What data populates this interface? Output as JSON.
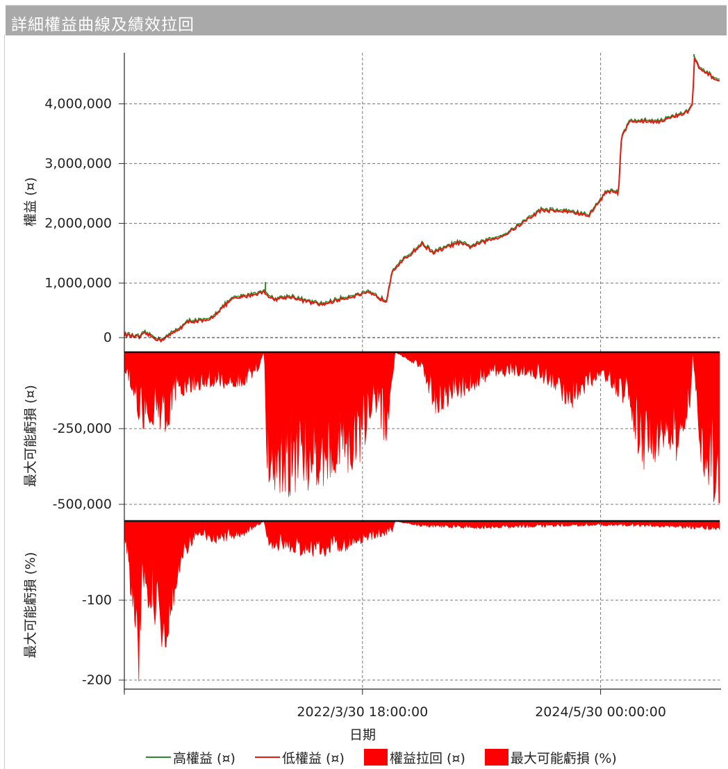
{
  "window": {
    "title": "詳細權益曲線及績效拉回"
  },
  "colors": {
    "high": "#2a8a2a",
    "low": "#e8170f",
    "fill": "#ff0000",
    "grid": "#777777"
  },
  "chart_data": {
    "type": "line",
    "xlabel": "日期",
    "x_ticks": [
      "2022/3/30 18:00:00",
      "2024/5/30 00:00:00"
    ],
    "series": [
      {
        "name": "高權益 (¤)",
        "type": "line"
      },
      {
        "name": "低權益 (¤)",
        "type": "line"
      },
      {
        "name": "權益拉回 (¤)",
        "type": "area"
      },
      {
        "name": "最大可能虧損 (%)",
        "type": "area"
      }
    ],
    "panels": [
      {
        "ylabel": "權益 (¤)",
        "yticks": [
          "4,000,000",
          "3,000,000",
          "2,000,000",
          "1,000,000",
          "0"
        ],
        "ylim": [
          -200000,
          4900000
        ],
        "equity_points": [
          [
            0.0,
            50000
          ],
          [
            0.025,
            0
          ],
          [
            0.035,
            70000
          ],
          [
            0.06,
            -50000
          ],
          [
            0.075,
            30000
          ],
          [
            0.11,
            280000
          ],
          [
            0.14,
            280000
          ],
          [
            0.18,
            650000
          ],
          [
            0.235,
            780000
          ],
          [
            0.25,
            650000
          ],
          [
            0.28,
            700000
          ],
          [
            0.3,
            630000
          ],
          [
            0.33,
            560000
          ],
          [
            0.38,
            700000
          ],
          [
            0.41,
            760000
          ],
          [
            0.44,
            620000
          ],
          [
            0.45,
            1150000
          ],
          [
            0.5,
            1600000
          ],
          [
            0.52,
            1450000
          ],
          [
            0.56,
            1620000
          ],
          [
            0.58,
            1550000
          ],
          [
            0.64,
            1760000
          ],
          [
            0.7,
            2180000
          ],
          [
            0.75,
            2150000
          ],
          [
            0.78,
            2080000
          ],
          [
            0.81,
            2500000
          ],
          [
            0.83,
            2480000
          ],
          [
            0.835,
            3450000
          ],
          [
            0.85,
            3700000
          ],
          [
            0.9,
            3700000
          ],
          [
            0.945,
            3850000
          ],
          [
            0.955,
            4000000
          ],
          [
            0.957,
            4800000
          ],
          [
            0.965,
            4600000
          ],
          [
            1.0,
            4380000
          ]
        ],
        "spikes": [
          [
            0.237,
            950000
          ],
          [
            0.957,
            4850000
          ]
        ]
      },
      {
        "ylabel": "最大可能虧損 (¤)",
        "yticks": [
          "-250,000",
          "-500,000"
        ],
        "ylim": [
          -560000,
          0
        ],
        "envelope": [
          [
            0.0,
            60000
          ],
          [
            0.02,
            170000
          ],
          [
            0.025,
            280000
          ],
          [
            0.04,
            230000
          ],
          [
            0.07,
            280000
          ],
          [
            0.09,
            150000
          ],
          [
            0.14,
            120000
          ],
          [
            0.2,
            120000
          ],
          [
            0.225,
            60000
          ],
          [
            0.235,
            0
          ],
          [
            0.24,
            450000
          ],
          [
            0.27,
            480000
          ],
          [
            0.3,
            470000
          ],
          [
            0.35,
            440000
          ],
          [
            0.4,
            360000
          ],
          [
            0.42,
            180000
          ],
          [
            0.44,
            330000
          ],
          [
            0.455,
            0
          ],
          [
            0.5,
            60000
          ],
          [
            0.52,
            210000
          ],
          [
            0.57,
            150000
          ],
          [
            0.62,
            80000
          ],
          [
            0.68,
            80000
          ],
          [
            0.72,
            120000
          ],
          [
            0.75,
            200000
          ],
          [
            0.8,
            80000
          ],
          [
            0.85,
            200000
          ],
          [
            0.87,
            420000
          ],
          [
            0.9,
            350000
          ],
          [
            0.93,
            380000
          ],
          [
            0.95,
            200000
          ],
          [
            0.955,
            0
          ],
          [
            0.97,
            420000
          ],
          [
            1.0,
            530000
          ]
        ]
      },
      {
        "ylabel": "最大可能虧損 (%)",
        "yticks": [
          "-100",
          "-200"
        ],
        "ylim": [
          -215,
          5
        ],
        "envelope": [
          [
            0.0,
            20
          ],
          [
            0.018,
            150
          ],
          [
            0.025,
            210
          ],
          [
            0.03,
            90
          ],
          [
            0.045,
            120
          ],
          [
            0.07,
            175
          ],
          [
            0.09,
            70
          ],
          [
            0.12,
            20
          ],
          [
            0.15,
            30
          ],
          [
            0.2,
            20
          ],
          [
            0.235,
            0
          ],
          [
            0.24,
            35
          ],
          [
            0.3,
            45
          ],
          [
            0.35,
            45
          ],
          [
            0.4,
            30
          ],
          [
            0.45,
            15
          ],
          [
            0.455,
            0
          ],
          [
            0.5,
            8
          ],
          [
            0.6,
            10
          ],
          [
            0.7,
            8
          ],
          [
            0.8,
            6
          ],
          [
            0.9,
            8
          ],
          [
            1.0,
            12
          ]
        ]
      }
    ]
  },
  "legend": [
    {
      "label": "高權益 (¤)",
      "kind": "line",
      "color": "#2a8a2a"
    },
    {
      "label": "低權益 (¤)",
      "kind": "line",
      "color": "#e8170f"
    },
    {
      "label": "權益拉回 (¤)",
      "kind": "box",
      "color": "#ff0000"
    },
    {
      "label": "最大可能虧損 (%)",
      "kind": "box",
      "color": "#ff0000"
    }
  ]
}
